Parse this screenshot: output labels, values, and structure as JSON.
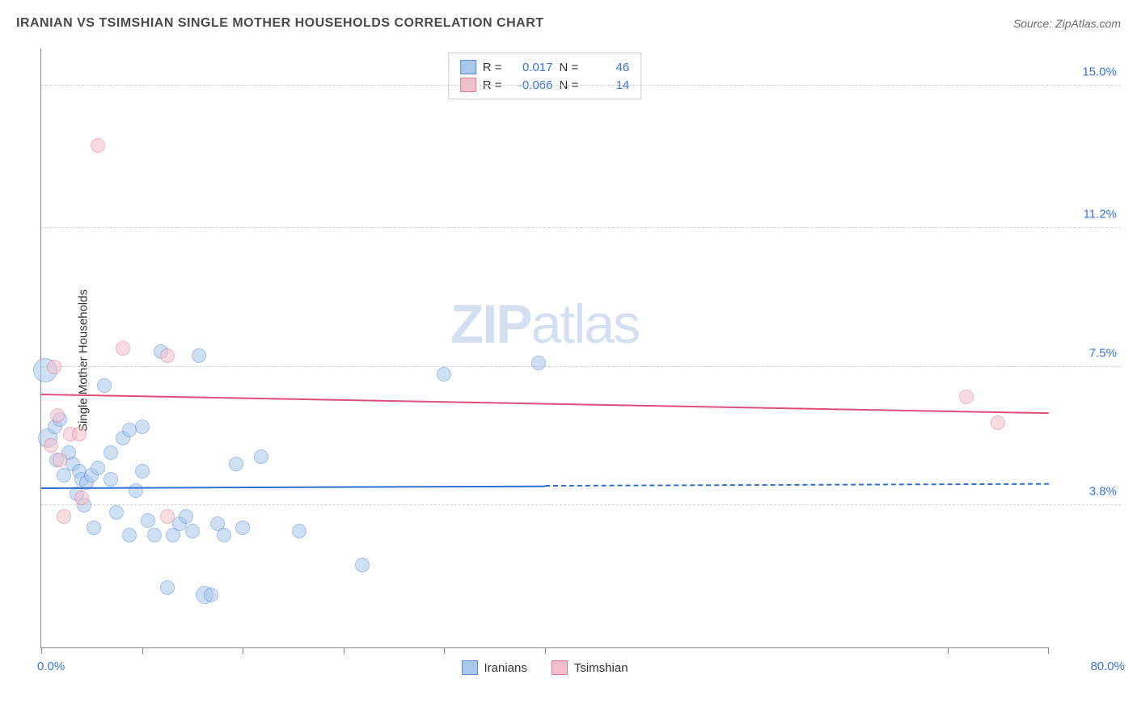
{
  "header": {
    "title": "IRANIAN VS TSIMSHIAN SINGLE MOTHER HOUSEHOLDS CORRELATION CHART",
    "source": "Source: ZipAtlas.com"
  },
  "watermark": {
    "part1": "ZIP",
    "part2": "atlas"
  },
  "chart": {
    "type": "scatter",
    "background_color": "#ffffff",
    "grid_color": "#d0d0d0",
    "axis_color": "#888888",
    "label_color": "#333333",
    "tick_label_color": "#3974d6",
    "y_axis_label": "Single Mother Households",
    "xlim": [
      0,
      80
    ],
    "ylim": [
      0,
      16
    ],
    "x_axis_min_label": "0.0%",
    "x_axis_max_label": "80.0%",
    "x_ticks": [
      0,
      8,
      16,
      24,
      32,
      40,
      72,
      80
    ],
    "y_ticks": [
      {
        "value": 3.8,
        "label": "3.8%"
      },
      {
        "value": 7.5,
        "label": "7.5%"
      },
      {
        "value": 11.2,
        "label": "11.2%"
      },
      {
        "value": 15.0,
        "label": "15.0%"
      }
    ],
    "title_fontsize": 16,
    "tick_fontsize": 15,
    "label_fontsize": 15,
    "marker_opacity": 0.55,
    "marker_default_radius": 9,
    "series": [
      {
        "name": "Iranians",
        "fill": "#a8c7ec",
        "stroke": "#5a8fd4",
        "trend_color": "#2f6fd0",
        "stats": {
          "R_label": "R =",
          "R": "0.017",
          "N_label": "N =",
          "N": "46"
        },
        "trend": {
          "y_start": 4.3,
          "y_end": 4.4,
          "solid_until_x": 40
        },
        "points": [
          {
            "x": 0.3,
            "y": 7.4,
            "r": 15
          },
          {
            "x": 0.5,
            "y": 5.6,
            "r": 12
          },
          {
            "x": 1.1,
            "y": 5.9
          },
          {
            "x": 1.2,
            "y": 5.0
          },
          {
            "x": 1.5,
            "y": 6.1
          },
          {
            "x": 1.8,
            "y": 4.6
          },
          {
            "x": 2.2,
            "y": 5.2
          },
          {
            "x": 2.5,
            "y": 4.9
          },
          {
            "x": 2.8,
            "y": 4.1
          },
          {
            "x": 3.0,
            "y": 4.7
          },
          {
            "x": 3.2,
            "y": 4.5
          },
          {
            "x": 3.4,
            "y": 3.8
          },
          {
            "x": 3.6,
            "y": 4.4
          },
          {
            "x": 4.0,
            "y": 4.6
          },
          {
            "x": 4.2,
            "y": 3.2
          },
          {
            "x": 4.5,
            "y": 4.8
          },
          {
            "x": 5.0,
            "y": 7.0
          },
          {
            "x": 5.5,
            "y": 5.2
          },
          {
            "x": 5.5,
            "y": 4.5
          },
          {
            "x": 6.0,
            "y": 3.6
          },
          {
            "x": 6.5,
            "y": 5.6
          },
          {
            "x": 7.0,
            "y": 5.8
          },
          {
            "x": 7.0,
            "y": 3.0
          },
          {
            "x": 7.5,
            "y": 4.2
          },
          {
            "x": 8.0,
            "y": 5.9
          },
          {
            "x": 8.0,
            "y": 4.7
          },
          {
            "x": 8.5,
            "y": 3.4
          },
          {
            "x": 9.0,
            "y": 3.0
          },
          {
            "x": 9.5,
            "y": 7.9
          },
          {
            "x": 10.0,
            "y": 1.6
          },
          {
            "x": 10.5,
            "y": 3.0
          },
          {
            "x": 11.0,
            "y": 3.3
          },
          {
            "x": 11.5,
            "y": 3.5
          },
          {
            "x": 12.0,
            "y": 3.1
          },
          {
            "x": 12.5,
            "y": 7.8
          },
          {
            "x": 13.0,
            "y": 1.4,
            "r": 11
          },
          {
            "x": 13.5,
            "y": 1.4
          },
          {
            "x": 14.0,
            "y": 3.3
          },
          {
            "x": 14.5,
            "y": 3.0
          },
          {
            "x": 15.5,
            "y": 4.9
          },
          {
            "x": 16.0,
            "y": 3.2
          },
          {
            "x": 17.5,
            "y": 5.1
          },
          {
            "x": 20.5,
            "y": 3.1
          },
          {
            "x": 25.5,
            "y": 2.2
          },
          {
            "x": 32.0,
            "y": 7.3
          },
          {
            "x": 39.5,
            "y": 7.6
          }
        ]
      },
      {
        "name": "Tsimshian",
        "fill": "#f4c0cc",
        "stroke": "#e07a94",
        "trend_color": "#e04f7a",
        "stats": {
          "R_label": "R =",
          "R": "-0.066",
          "N_label": "N =",
          "N": "14"
        },
        "trend": {
          "y_start": 6.8,
          "y_end": 6.3,
          "solid_until_x": 80
        },
        "points": [
          {
            "x": 0.8,
            "y": 5.4
          },
          {
            "x": 1.0,
            "y": 7.5
          },
          {
            "x": 1.3,
            "y": 6.2
          },
          {
            "x": 1.5,
            "y": 5.0
          },
          {
            "x": 1.8,
            "y": 3.5
          },
          {
            "x": 2.3,
            "y": 5.7
          },
          {
            "x": 3.0,
            "y": 5.7
          },
          {
            "x": 3.2,
            "y": 4.0
          },
          {
            "x": 4.5,
            "y": 13.4
          },
          {
            "x": 6.5,
            "y": 8.0
          },
          {
            "x": 10.0,
            "y": 3.5
          },
          {
            "x": 10.0,
            "y": 7.8
          },
          {
            "x": 73.5,
            "y": 6.7
          },
          {
            "x": 76.0,
            "y": 6.0
          }
        ]
      }
    ]
  },
  "legend": {
    "series_label_1": "Iranians",
    "series_label_2": "Tsimshian"
  }
}
